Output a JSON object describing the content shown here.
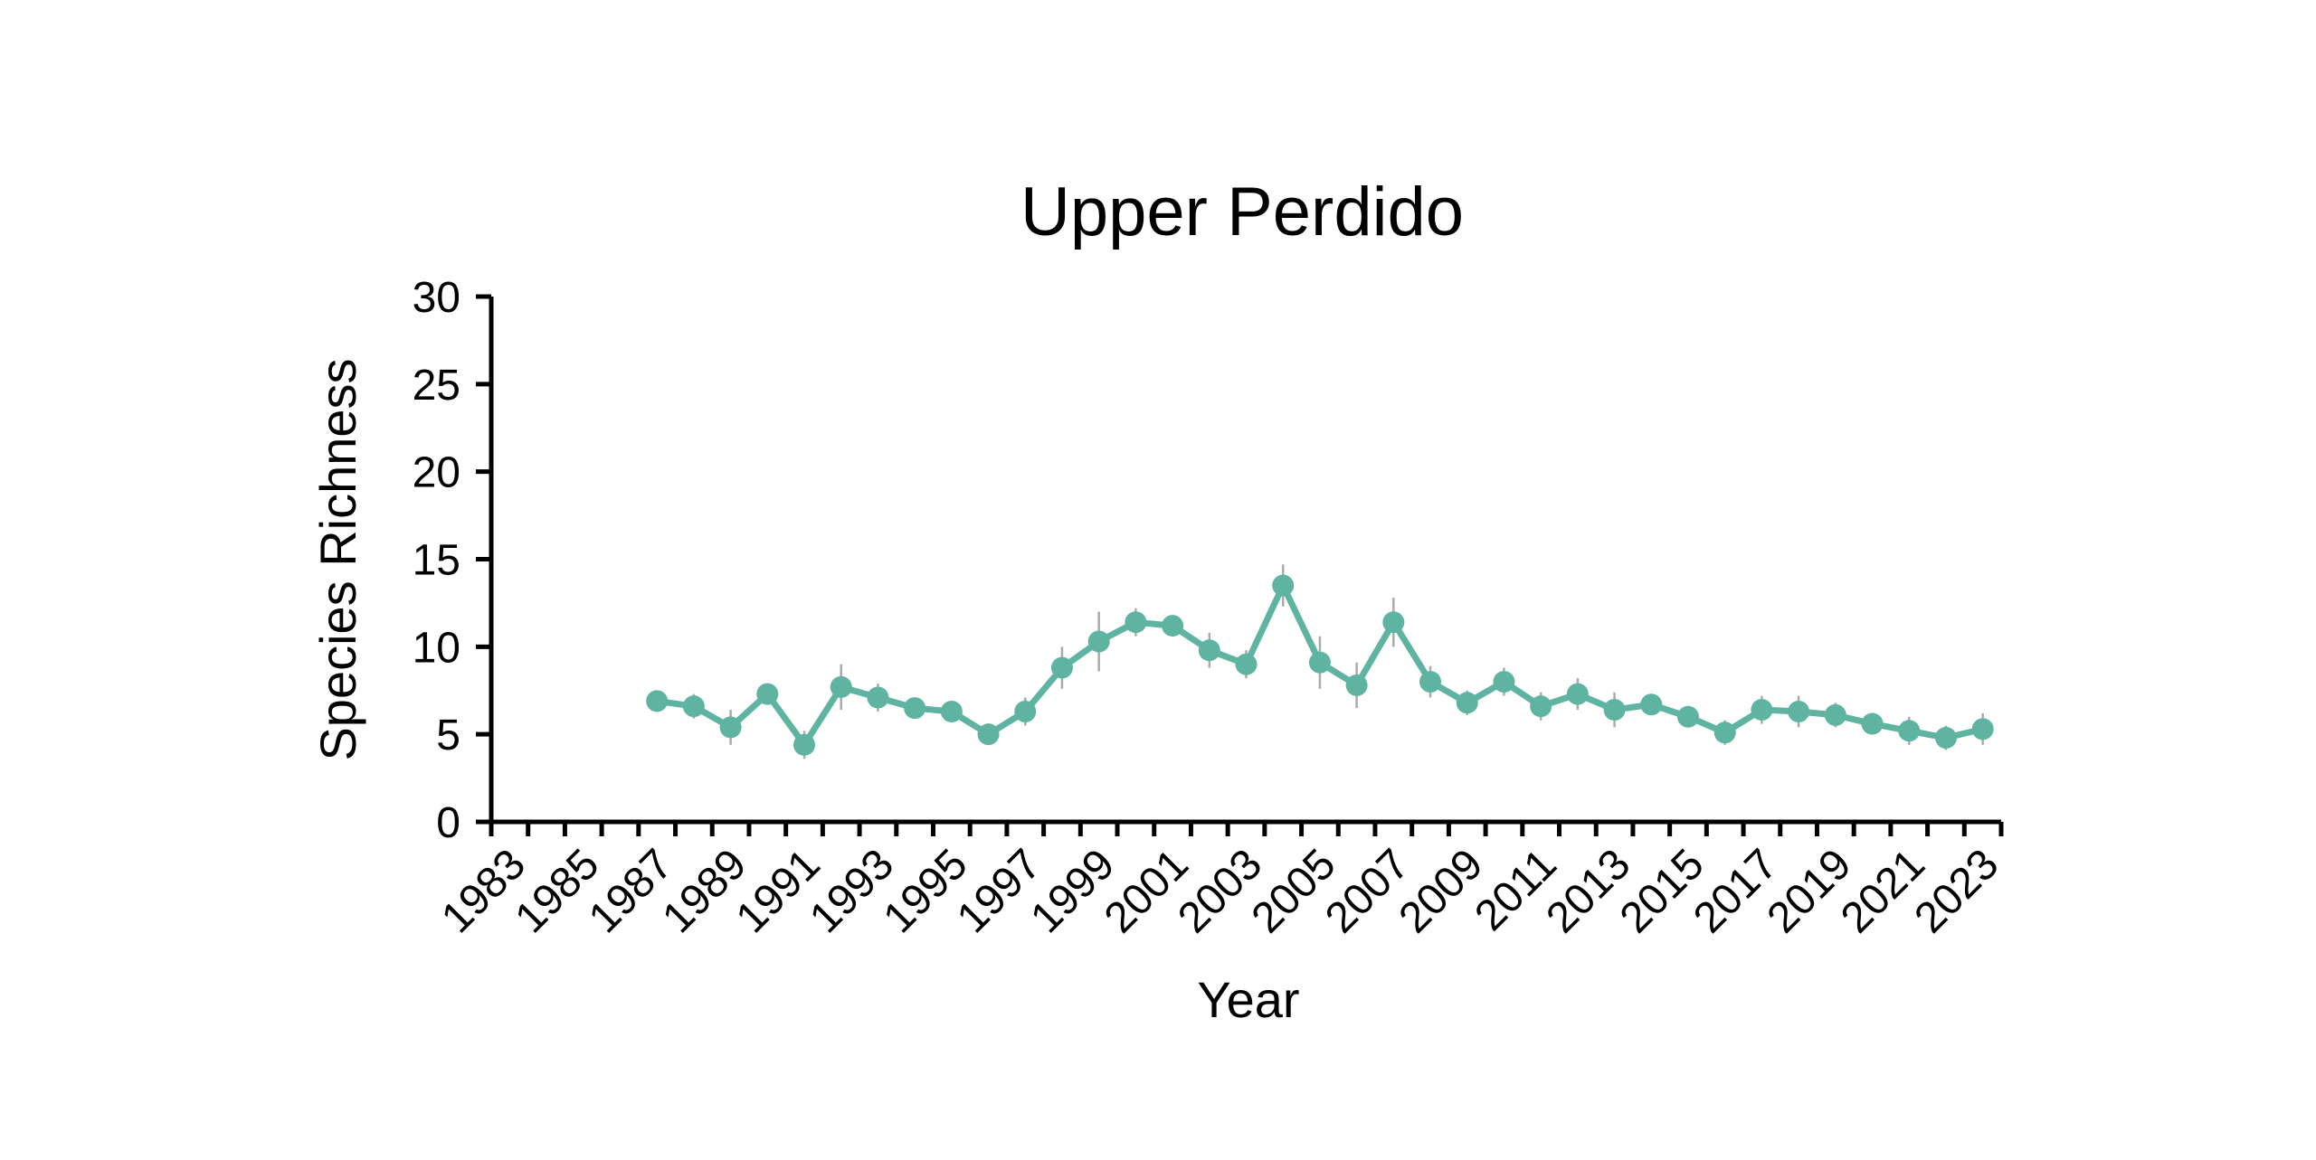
{
  "chart_data": {
    "type": "line",
    "title": "Upper Perdido",
    "xlabel": "Year",
    "ylabel": "Species Richness",
    "ylim": [
      0,
      30
    ],
    "yticks": [
      0,
      5,
      10,
      15,
      20,
      25,
      30
    ],
    "xlim": [
      1983,
      2024
    ],
    "xtick_labels": [
      "1983",
      "1985",
      "1987",
      "1989",
      "1991",
      "1993",
      "1995",
      "1997",
      "1999",
      "2001",
      "2003",
      "2005",
      "2007",
      "2009",
      "2011",
      "2013",
      "2015",
      "2017",
      "2019",
      "2021",
      "2023"
    ],
    "grid": false,
    "legend": "none",
    "series": [
      {
        "color": "#5fb3a1",
        "error_color": "#aaaaaa",
        "x": [
          1987,
          1988,
          1989,
          1990,
          1991,
          1992,
          1993,
          1994,
          1995,
          1996,
          1997,
          1998,
          1999,
          2000,
          2001,
          2002,
          2003,
          2004,
          2005,
          2006,
          2007,
          2008,
          2009,
          2010,
          2011,
          2012,
          2013,
          2014,
          2015,
          2016,
          2017,
          2018,
          2019,
          2020,
          2021,
          2022,
          2023
        ],
        "y": [
          6.9,
          6.6,
          5.4,
          7.3,
          4.4,
          7.7,
          7.1,
          6.5,
          6.3,
          5.0,
          6.3,
          8.8,
          10.3,
          11.4,
          11.2,
          9.8,
          9.0,
          13.5,
          9.1,
          7.8,
          11.4,
          8.0,
          6.8,
          8.0,
          6.6,
          7.3,
          6.4,
          6.7,
          6.0,
          5.1,
          6.4,
          6.3,
          6.1,
          5.6,
          5.2,
          4.8,
          5.3
        ],
        "err": [
          0.6,
          0.7,
          1.0,
          0.5,
          0.8,
          1.3,
          0.8,
          0.5,
          0.5,
          0.5,
          0.8,
          1.2,
          1.7,
          0.8,
          0.6,
          1.0,
          0.8,
          1.2,
          1.5,
          1.3,
          1.4,
          0.9,
          0.7,
          0.8,
          0.8,
          0.9,
          1.0,
          0.6,
          0.5,
          0.7,
          0.8,
          0.9,
          0.7,
          0.6,
          0.8,
          0.7,
          0.9
        ]
      }
    ]
  }
}
